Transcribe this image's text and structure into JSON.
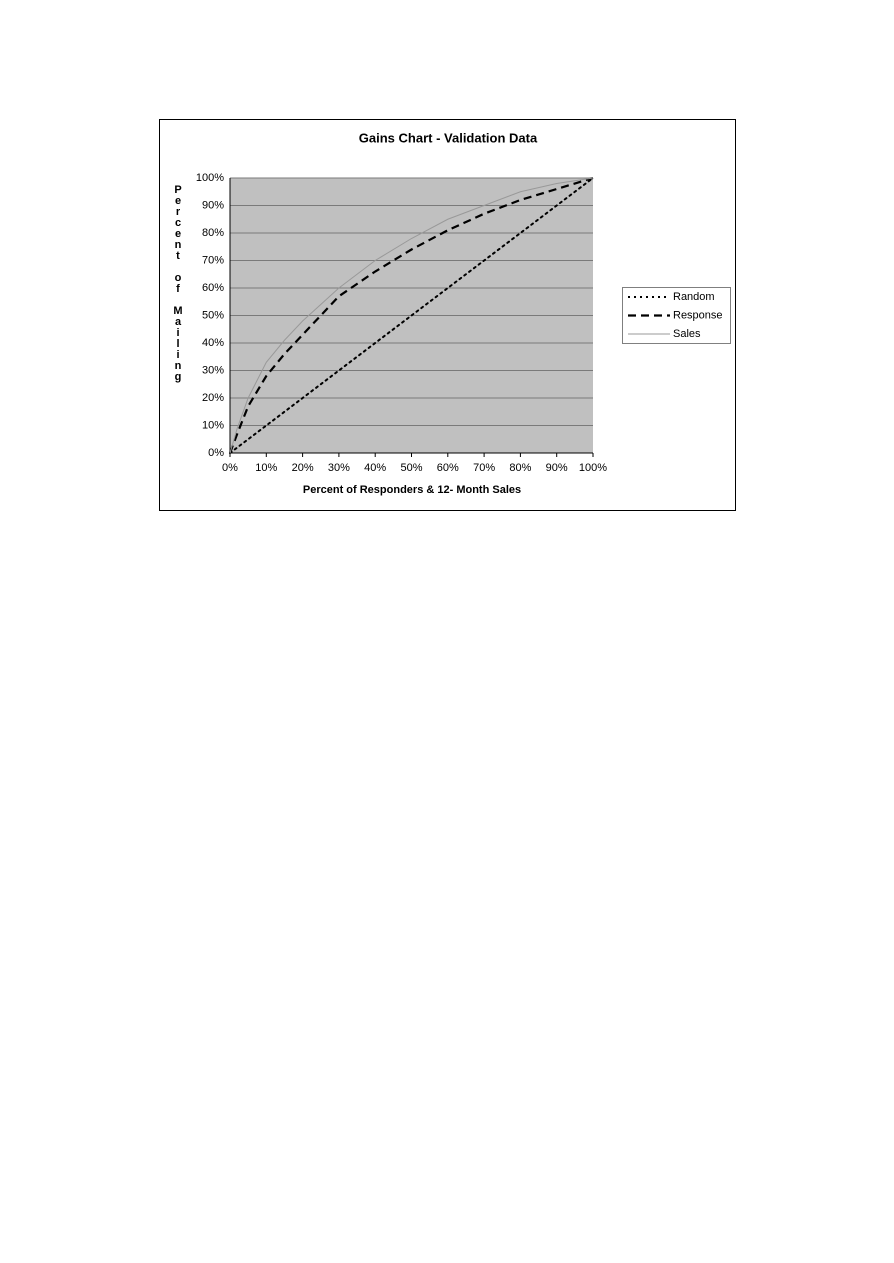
{
  "chart_data": {
    "type": "line",
    "title": "Gains Chart - Validation Data",
    "xlabel": "Percent of Responders & 12- Month Sales",
    "ylabel": "Percent of Mailing",
    "xlim": [
      0,
      100
    ],
    "ylim": [
      0,
      100
    ],
    "xticks": [
      {
        "value": 0,
        "label": "0%"
      },
      {
        "value": 10,
        "label": "10%"
      },
      {
        "value": 20,
        "label": "20%"
      },
      {
        "value": 30,
        "label": "30%"
      },
      {
        "value": 40,
        "label": "40%"
      },
      {
        "value": 50,
        "label": "50%"
      },
      {
        "value": 60,
        "label": "60%"
      },
      {
        "value": 70,
        "label": "70%"
      },
      {
        "value": 80,
        "label": "80%"
      },
      {
        "value": 90,
        "label": "90%"
      },
      {
        "value": 100,
        "label": "100%"
      }
    ],
    "yticks": [
      {
        "value": 0,
        "label": "0%"
      },
      {
        "value": 10,
        "label": "10%"
      },
      {
        "value": 20,
        "label": "20%"
      },
      {
        "value": 30,
        "label": "30%"
      },
      {
        "value": 40,
        "label": "40%"
      },
      {
        "value": 50,
        "label": "50%"
      },
      {
        "value": 60,
        "label": "60%"
      },
      {
        "value": 70,
        "label": "70%"
      },
      {
        "value": 80,
        "label": "80%"
      },
      {
        "value": 90,
        "label": "90%"
      },
      {
        "value": 100,
        "label": "100%"
      }
    ],
    "grid": true,
    "legend": "right",
    "series": [
      {
        "name": "Random",
        "color": "#000000",
        "dash": "dotted",
        "x": [
          0,
          10,
          20,
          30,
          40,
          50,
          60,
          70,
          80,
          90,
          100
        ],
        "values": [
          0,
          10,
          20,
          30,
          40,
          50,
          60,
          70,
          80,
          90,
          100
        ]
      },
      {
        "name": "Response",
        "color": "#000000",
        "dash": "dashed",
        "x": [
          0,
          2,
          5,
          10,
          15,
          20,
          25,
          30,
          40,
          50,
          60,
          70,
          80,
          90,
          100
        ],
        "values": [
          0,
          7,
          17,
          28,
          36,
          43,
          50,
          57,
          66,
          74,
          81,
          87,
          92,
          96,
          100
        ]
      },
      {
        "name": "Sales",
        "color": "#999999",
        "dash": "solid",
        "x": [
          0,
          2,
          5,
          10,
          15,
          20,
          25,
          30,
          40,
          50,
          60,
          70,
          80,
          90,
          100
        ],
        "values": [
          0,
          9,
          20,
          33,
          41,
          48,
          54,
          60,
          70,
          78,
          85,
          90,
          95,
          98,
          100
        ]
      }
    ]
  }
}
